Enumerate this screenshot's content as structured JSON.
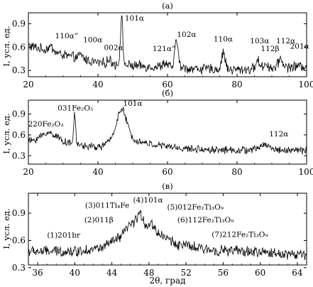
{
  "chart_data": [
    {
      "type": "line",
      "panel_label": "(а)",
      "xlim": [
        20,
        100
      ],
      "ylim": [
        0.22,
        1.04
      ],
      "xticks": [
        "20",
        "40",
        "60",
        "80",
        "100"
      ],
      "yticks": [
        "0.3",
        "0.6",
        "0.9"
      ],
      "ylabel": "I, усл. ед.",
      "grid": false,
      "base": [
        [
          20,
          0.62
        ],
        [
          30,
          0.5
        ],
        [
          40,
          0.4
        ],
        [
          50,
          0.36
        ],
        [
          60,
          0.34
        ],
        [
          70,
          0.32
        ],
        [
          80,
          0.31
        ],
        [
          90,
          0.33
        ],
        [
          100,
          0.36
        ]
      ],
      "noise": 0.055,
      "peaks": [
        [
          26.4,
          0.06,
          0.8
        ],
        [
          35.2,
          0.05,
          0.6
        ],
        [
          43.3,
          0.05,
          0.6
        ],
        [
          46.8,
          0.6,
          0.35
        ],
        [
          59.3,
          0.05,
          0.8
        ],
        [
          62.6,
          0.38,
          0.45
        ],
        [
          76.1,
          0.22,
          0.5
        ],
        [
          86.0,
          0.1,
          0.6
        ],
        [
          88.3,
          0.06,
          0.6
        ],
        [
          92.5,
          0.12,
          0.6
        ]
      ],
      "annotations": [
        {
          "text": "101α",
          "x": 50.5,
          "y": 0.94
        },
        {
          "text": "102α",
          "x": 65.5,
          "y": 0.73
        },
        {
          "text": "110α",
          "x": 76.0,
          "y": 0.67
        },
        {
          "text": "110α”",
          "x": 31.0,
          "y": 0.71
        },
        {
          "text": "100α",
          "x": 38.5,
          "y": 0.66
        },
        {
          "text": "002α",
          "x": 44.5,
          "y": 0.56
        },
        {
          "text": "121α”",
          "x": 59.0,
          "y": 0.55
        },
        {
          "text": "103α",
          "x": 86.5,
          "y": 0.65
        },
        {
          "text": "112β",
          "x": 89.5,
          "y": 0.55
        },
        {
          "text": "112α",
          "x": 94.0,
          "y": 0.65
        },
        {
          "text": "201α",
          "x": 98.0,
          "y": 0.58
        }
      ]
    },
    {
      "type": "line",
      "panel_label": "(б)",
      "xlim": [
        20,
        100
      ],
      "ylim": [
        0.18,
        1.1
      ],
      "xticks": [
        "20",
        "40",
        "60",
        "80",
        "100"
      ],
      "yticks": [
        "0.3",
        "0.6",
        "0.9"
      ],
      "ylabel": "I, усл. ед.",
      "grid": false,
      "base": [
        [
          20,
          0.5
        ],
        [
          30,
          0.48
        ],
        [
          40,
          0.42
        ],
        [
          44,
          0.5
        ],
        [
          50,
          0.52
        ],
        [
          56,
          0.46
        ],
        [
          65,
          0.4
        ],
        [
          80,
          0.38
        ],
        [
          100,
          0.38
        ]
      ],
      "noise": 0.045,
      "peaks": [
        [
          26.0,
          0.14,
          2.5
        ],
        [
          33.3,
          0.42,
          0.3
        ],
        [
          46.8,
          0.45,
          1.5
        ],
        [
          88.0,
          0.08,
          1.5
        ]
      ],
      "annotations": [
        {
          "text": "101α",
          "x": 50.0,
          "y": 1.02
        },
        {
          "text": "031Fe₂O₃",
          "x": 33.5,
          "y": 0.95
        },
        {
          "text": "220Fe₂O₃",
          "x": 25.0,
          "y": 0.72
        },
        {
          "text": "112α",
          "x": 92.0,
          "y": 0.58
        }
      ]
    },
    {
      "type": "line",
      "panel_label": "(в)",
      "xlim": [
        35,
        65
      ],
      "ylim": [
        0.33,
        1.12
      ],
      "xticks": [
        "36",
        "40",
        "44",
        "48",
        "52",
        "56",
        "60",
        "64"
      ],
      "yticks": [
        "0.3",
        "0.6",
        "0.9"
      ],
      "ylabel": "I, усл. ед.",
      "xlabel": "2θ, град",
      "grid": false,
      "base": [
        [
          35,
          0.48
        ],
        [
          40,
          0.48
        ],
        [
          43,
          0.52
        ],
        [
          45,
          0.64
        ],
        [
          47.2,
          0.78
        ],
        [
          49,
          0.68
        ],
        [
          51,
          0.56
        ],
        [
          54,
          0.5
        ],
        [
          58,
          0.48
        ],
        [
          65,
          0.44
        ]
      ],
      "noise": 0.05,
      "peaks": [
        [
          46.9,
          0.12,
          0.4
        ],
        [
          45.8,
          0.07,
          0.3
        ],
        [
          48.3,
          0.06,
          0.3
        ]
      ],
      "annotations": [
        {
          "text": "(4)101α",
          "x": 47.9,
          "y": 1.02
        },
        {
          "text": "(3)011Ti₄Fe",
          "x": 43.5,
          "y": 0.96
        },
        {
          "text": "(5)012Fe₂Ti₃O₉",
          "x": 53.0,
          "y": 0.94
        },
        {
          "text": "(2)011β",
          "x": 42.6,
          "y": 0.8
        },
        {
          "text": "(6)112Fe₂Ti₃O₉",
          "x": 54.1,
          "y": 0.8
        },
        {
          "text": "(1)201br",
          "x": 38.8,
          "y": 0.63
        },
        {
          "text": "(7)212Fe₂Ti₃O₉",
          "x": 57.8,
          "y": 0.64
        }
      ]
    }
  ]
}
